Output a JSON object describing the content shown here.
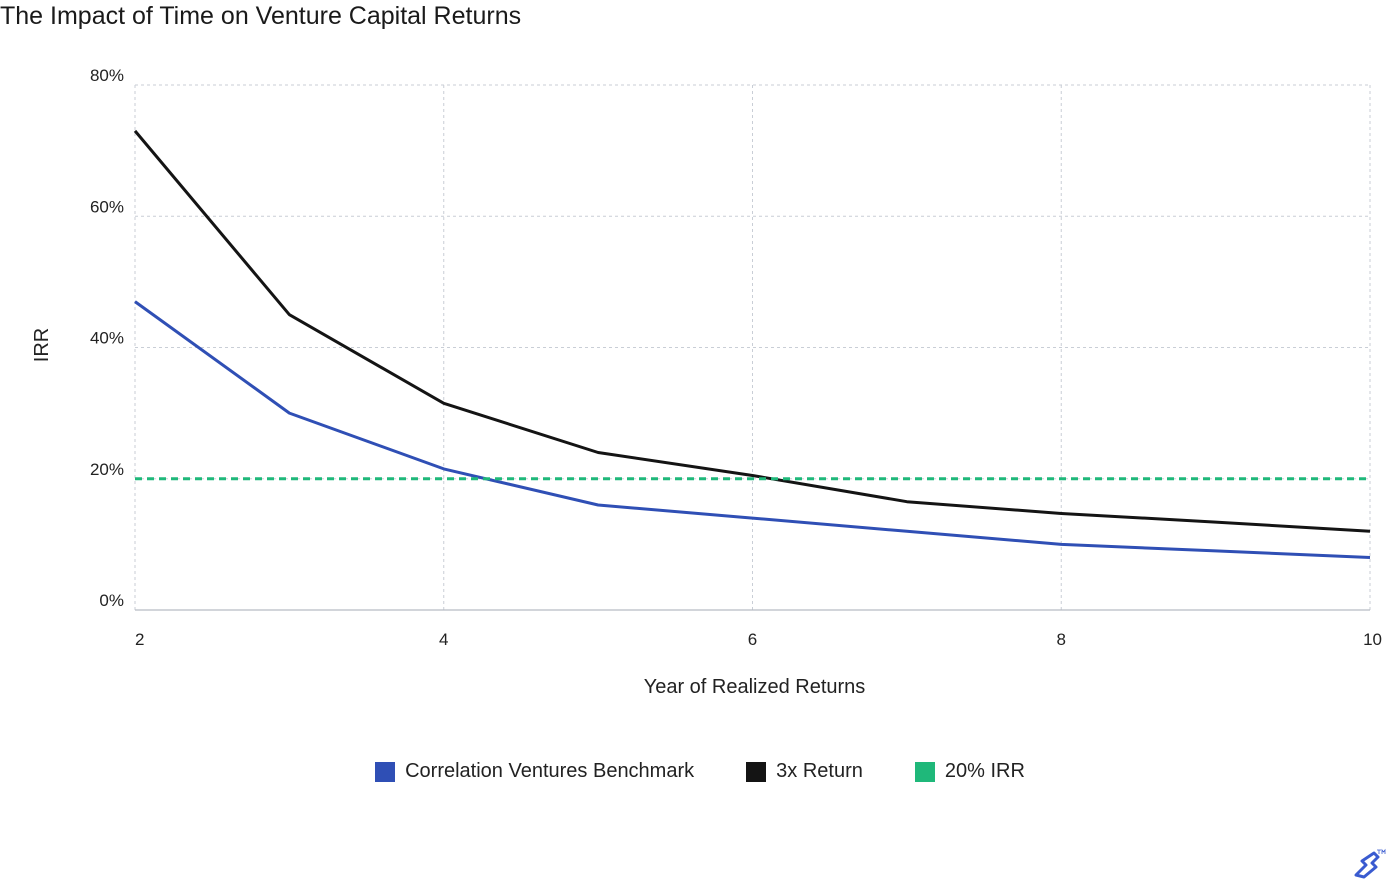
{
  "chart_data": {
    "type": "line",
    "title": "The Impact of Time on Venture Capital Returns",
    "xlabel": "Year of Realized Returns",
    "ylabel": "IRR",
    "xlim": [
      2,
      10
    ],
    "ylim": [
      0,
      80
    ],
    "x_ticks": [
      2,
      4,
      6,
      8,
      10
    ],
    "y_ticks": [
      0,
      20,
      40,
      60,
      80
    ],
    "y_tick_labels": [
      "0%",
      "20%",
      "40%",
      "60%",
      "80%"
    ],
    "grid": true,
    "legend_position": "bottom-center",
    "series": [
      {
        "name": "Correlation Ventures Benchmark",
        "color": "#2f4fb5",
        "style": "solid",
        "points": [
          [
            2,
            47
          ],
          [
            3,
            30
          ],
          [
            4,
            21.5
          ],
          [
            5,
            16
          ],
          [
            6,
            14
          ],
          [
            7,
            12
          ],
          [
            8,
            10
          ],
          [
            9,
            9
          ],
          [
            10,
            8
          ]
        ]
      },
      {
        "name": "3x Return",
        "color": "#141414",
        "style": "solid",
        "points": [
          [
            2,
            73
          ],
          [
            3,
            45
          ],
          [
            4,
            31.5
          ],
          [
            5,
            24
          ],
          [
            6,
            20.5
          ],
          [
            7,
            16.5
          ],
          [
            8,
            14.7
          ],
          [
            9,
            13.4
          ],
          [
            10,
            12
          ]
        ]
      },
      {
        "name": "20% IRR",
        "color": "#1fb87a",
        "style": "dashed",
        "points": [
          [
            2,
            20
          ],
          [
            10,
            20
          ]
        ]
      }
    ]
  }
}
